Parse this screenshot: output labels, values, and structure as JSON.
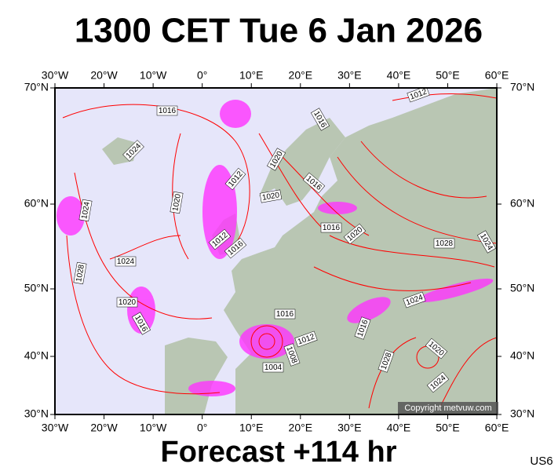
{
  "header": {
    "title": "1300 CET Tue 6 Jan 2026"
  },
  "footer": {
    "forecast": "Forecast +114 hr",
    "code": "US6"
  },
  "map": {
    "copyright": "Copyright metvuw.com",
    "longitude_labels": [
      "30°W",
      "20°W",
      "10°W",
      "0°",
      "10°E",
      "20°E",
      "30°E",
      "40°E",
      "50°E",
      "60°E"
    ],
    "latitude_labels": [
      "70°N",
      "60°N",
      "50°N",
      "40°N",
      "30°N"
    ],
    "isobar_labels": [
      "1016",
      "1024",
      "1012",
      "1020",
      "1024",
      "1012",
      "1016",
      "1024",
      "1028",
      "1020",
      "1016",
      "1012",
      "1016",
      "1020",
      "1016",
      "1020",
      "1016",
      "1020",
      "1028",
      "1024",
      "1024",
      "1016",
      "1016",
      "1012",
      "1008",
      "1004",
      "1028",
      "1020",
      "1024"
    ]
  }
}
